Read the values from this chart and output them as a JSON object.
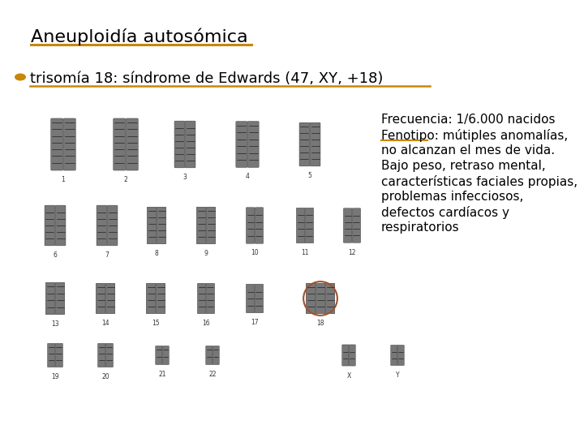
{
  "title": "Aneuploidía autosómica",
  "title_underline_color": "#C8860A",
  "subtitle": "trisomía 18: síndrome de Edwards (47, XY, +18)",
  "subtitle_bullet_color": "#C8860A",
  "subtitle_underline_color": "#C8860A",
  "info_lines": [
    "Frecuencia: 1/6.000 nacidos",
    "Fenotipo: mútiples anomalías,",
    "no alcanzan el mes de vida.",
    "Bajo peso, retraso mental,",
    "características faciales propias,",
    "problemas infecciosos,",
    "defectos cardíacos y",
    "respiratorios"
  ],
  "fenotipo_underline_color": "#C8860A",
  "bg_color": "#ffffff",
  "text_color": "#000000",
  "title_fontsize": 16,
  "subtitle_fontsize": 13,
  "info_fontsize": 11,
  "circle_color": "#A0522D"
}
